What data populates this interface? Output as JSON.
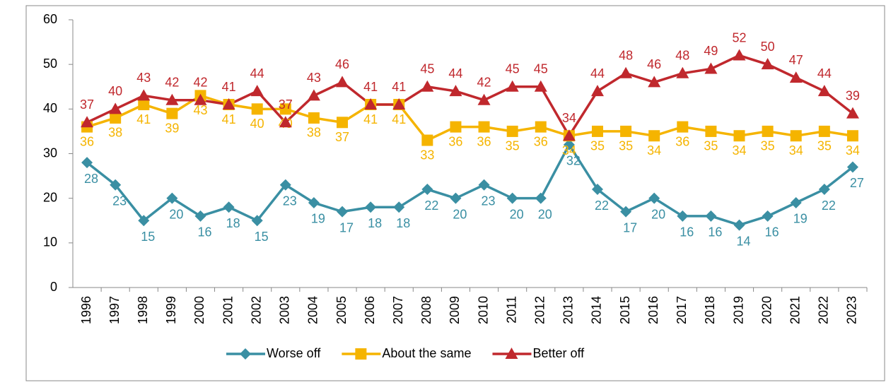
{
  "chart_data": {
    "type": "line",
    "categories": [
      "1996",
      "1997",
      "1998",
      "1999",
      "2000",
      "2001",
      "2002",
      "2003",
      "2004",
      "2005",
      "2006",
      "2007",
      "2008",
      "2009",
      "2010",
      "2011",
      "2012",
      "2013",
      "2014",
      "2015",
      "2016",
      "2017",
      "2018",
      "2019",
      "2020",
      "2021",
      "2022",
      "2023"
    ],
    "series": [
      {
        "name": "Worse off",
        "color": "#3a8fa3",
        "marker": "diamond",
        "values": [
          28,
          23,
          15,
          20,
          16,
          18,
          15,
          23,
          19,
          17,
          18,
          18,
          22,
          20,
          23,
          20,
          20,
          32,
          22,
          17,
          20,
          16,
          16,
          14,
          16,
          19,
          22,
          27
        ]
      },
      {
        "name": "About the same",
        "color": "#f5b400",
        "marker": "square",
        "values": [
          36,
          38,
          41,
          39,
          43,
          41,
          40,
          40,
          38,
          37,
          41,
          41,
          33,
          36,
          36,
          35,
          36,
          34,
          35,
          35,
          34,
          36,
          35,
          34,
          35,
          34,
          35,
          34
        ]
      },
      {
        "name": "Better off",
        "color": "#c0282d",
        "marker": "triangle",
        "values": [
          37,
          40,
          43,
          42,
          42,
          41,
          44,
          37,
          43,
          46,
          41,
          41,
          45,
          44,
          42,
          45,
          45,
          34,
          44,
          48,
          46,
          48,
          49,
          52,
          50,
          47,
          44,
          39
        ]
      }
    ],
    "ylim": [
      0,
      60
    ],
    "yticks": [
      0,
      10,
      20,
      30,
      40,
      50,
      60
    ],
    "legend": "bottom"
  }
}
